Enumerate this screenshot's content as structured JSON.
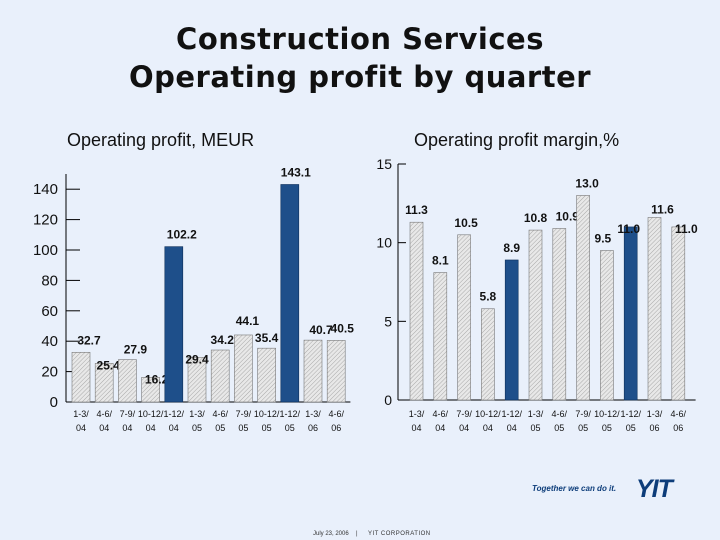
{
  "title_line1": "Construction Services",
  "title_line2": "Operating profit by quarter",
  "footer": {
    "date": "July 23, 2006",
    "separator": "|",
    "company": "YIT CORPORATION",
    "slogan": "Together we can do it.",
    "logo": "YIT"
  },
  "colors": {
    "highlight": "#1e4f8a",
    "hatched_fill": "#e8e8e8",
    "hatch_line": "#aaaaaa"
  },
  "chart_data": [
    {
      "type": "bar",
      "title": "Operating profit, MEUR",
      "categories": [
        [
          "1-3/",
          "04"
        ],
        [
          "4-6/",
          "04"
        ],
        [
          "7-9/",
          "04"
        ],
        [
          "10-12/",
          "04"
        ],
        [
          "1-12/",
          "04"
        ],
        [
          "1-3/",
          "05"
        ],
        [
          "4-6/",
          "05"
        ],
        [
          "7-9/",
          "05"
        ],
        [
          "10-12/",
          "05"
        ],
        [
          "1-12/",
          "05"
        ],
        [
          "1-3/",
          "06"
        ],
        [
          "4-6/",
          "06"
        ]
      ],
      "values": [
        32.7,
        25.4,
        27.9,
        16.2,
        102.2,
        29.4,
        34.2,
        44.1,
        35.4,
        143.1,
        40.7,
        40.5
      ],
      "labels": [
        "32.7",
        "25.4",
        "27.9",
        "16.2",
        "102.2",
        "29.4",
        "34.2",
        "44.1",
        "35.4",
        "143.1",
        "40.7",
        "40.5"
      ],
      "highlighted": [
        false,
        false,
        false,
        false,
        true,
        false,
        false,
        false,
        false,
        true,
        false,
        false
      ],
      "ylim": [
        0,
        150
      ],
      "yticks": [
        0,
        20,
        40,
        60,
        80,
        100,
        120,
        140
      ],
      "ytick_labels": [
        "0",
        "20",
        "40",
        "60",
        "80",
        "100",
        "120",
        "140"
      ]
    },
    {
      "type": "bar",
      "title": "Operating profit margin,%",
      "categories": [
        [
          "1-3/",
          "04"
        ],
        [
          "4-6/",
          "04"
        ],
        [
          "7-9/",
          "04"
        ],
        [
          "10-12/",
          "04"
        ],
        [
          "1-12/",
          "04"
        ],
        [
          "1-3/",
          "05"
        ],
        [
          "4-6/",
          "05"
        ],
        [
          "7-9/",
          "05"
        ],
        [
          "10-12/",
          "05"
        ],
        [
          "1-12/",
          "05"
        ],
        [
          "1-3/",
          "06"
        ],
        [
          "4-6/",
          "06"
        ]
      ],
      "values": [
        11.3,
        8.1,
        10.5,
        5.8,
        8.9,
        10.8,
        10.9,
        13.0,
        9.5,
        11.0,
        11.6,
        11.0
      ],
      "labels": [
        "11.3",
        "8.1",
        "10.5",
        "5.8",
        "8.9",
        "10.8",
        "10.9",
        "13.0",
        "9.5",
        "11.0",
        "11.6",
        "11.0"
      ],
      "highlighted": [
        false,
        false,
        false,
        false,
        true,
        false,
        false,
        false,
        false,
        true,
        false,
        false
      ],
      "ylim": [
        0,
        15
      ],
      "yticks": [
        0,
        5,
        10,
        15
      ],
      "ytick_labels": [
        "0",
        "5",
        "10",
        "15"
      ]
    }
  ]
}
